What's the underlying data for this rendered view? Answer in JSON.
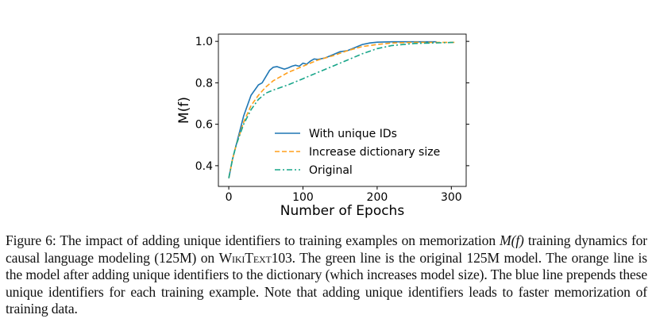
{
  "chart_data": {
    "type": "line",
    "xlabel": "Number of Epochs",
    "ylabel": "M(f)",
    "xlim": [
      -14,
      320
    ],
    "ylim": [
      0.3,
      1.035
    ],
    "xticks": [
      0,
      100,
      200,
      300
    ],
    "yticks": [
      0.4,
      0.6,
      0.8,
      1.0
    ],
    "xtick_labels": [
      "0",
      "100",
      "200",
      "300"
    ],
    "ytick_labels": [
      "0.4",
      "0.6",
      "0.8",
      "1.0"
    ],
    "grid": false,
    "legend_placement": "lower-right",
    "series": [
      {
        "name": "With unique IDs",
        "color": "#1f77b4",
        "style": "solid",
        "x": [
          0,
          5,
          10,
          20,
          30,
          40,
          45,
          50,
          55,
          60,
          65,
          70,
          75,
          80,
          85,
          90,
          95,
          100,
          105,
          110,
          115,
          120,
          130,
          140,
          150,
          160,
          170,
          180,
          190,
          200,
          220,
          250,
          280
        ],
        "y": [
          0.34,
          0.43,
          0.5,
          0.64,
          0.74,
          0.79,
          0.8,
          0.83,
          0.86,
          0.875,
          0.878,
          0.872,
          0.866,
          0.872,
          0.88,
          0.885,
          0.88,
          0.895,
          0.89,
          0.905,
          0.915,
          0.913,
          0.92,
          0.935,
          0.95,
          0.955,
          0.97,
          0.985,
          0.992,
          0.996,
          0.998,
          0.998,
          0.998
        ]
      },
      {
        "name": "Increase dictionary size",
        "color": "#ff9f1c",
        "style": "dashed",
        "x": [
          0,
          5,
          10,
          20,
          30,
          40,
          50,
          60,
          80,
          100,
          120,
          140,
          160,
          180,
          200,
          220,
          250,
          305
        ],
        "y": [
          0.34,
          0.43,
          0.5,
          0.61,
          0.69,
          0.74,
          0.78,
          0.81,
          0.85,
          0.88,
          0.91,
          0.93,
          0.955,
          0.975,
          0.985,
          0.992,
          0.995,
          0.995
        ]
      },
      {
        "name": "Original",
        "color": "#17a589",
        "style": "dashdot",
        "x": [
          0,
          5,
          10,
          20,
          30,
          40,
          50,
          60,
          80,
          100,
          120,
          140,
          160,
          180,
          200,
          220,
          250,
          305
        ],
        "y": [
          0.34,
          0.43,
          0.5,
          0.6,
          0.67,
          0.72,
          0.75,
          0.765,
          0.79,
          0.82,
          0.85,
          0.88,
          0.91,
          0.94,
          0.965,
          0.98,
          0.99,
          0.995
        ]
      }
    ]
  },
  "caption": {
    "label": "Figure 6:",
    "text_1": " The impact of adding unique identifiers to training examples on memorization ",
    "math": "M(f)",
    "text_2": " training dynamics for causal language modeling (125M) on ",
    "dataset": "WikiText103",
    "text_3": ". The green line is the original 125M model. The orange line is the model after adding unique identifiers to the dictionary (which increases model size).  The blue line prepends these unique identifiers for each training example. Note that adding unique identifiers leads to faster memorization of training data."
  }
}
